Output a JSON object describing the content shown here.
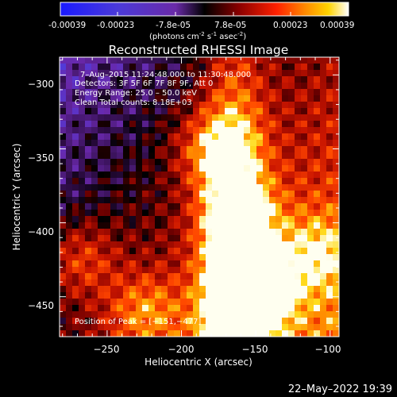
{
  "colorbar": {
    "ticks": [
      "-0.00039",
      "-0.00023",
      "-7.8e-05",
      "7.8e-05",
      "0.00023",
      "0.00039"
    ],
    "units_label": "(photons cm",
    "units_sup1": "-2",
    "units_mid": " s",
    "units_sup2": "-1",
    "units_tail": " asec",
    "units_sup3": "-2",
    "units_close": ")"
  },
  "chart_data": {
    "type": "heatmap",
    "title": "Reconstructed RHESSI Image",
    "xlabel": "Heliocentric X (arcsec)",
    "ylabel": "Heliocentric Y (arcsec)",
    "xlim": [
      -282,
      -94
    ],
    "ylim": [
      -477,
      -288
    ],
    "x_ticks": [
      -250,
      -200,
      -150,
      -100
    ],
    "y_ticks": [
      -300,
      -350,
      -400,
      -450
    ],
    "x_tick_labels": [
      "−250",
      "−200",
      "−150",
      "−100"
    ],
    "y_tick_labels": [
      "−300",
      "−350",
      "−400",
      "−450"
    ],
    "colorbar_range": [
      -0.00039,
      0.00039
    ],
    "colormap": "red-temperature (blue-violet negative, black near zero, red-yellow-white positive)",
    "peak": [
      -151,
      -477
    ],
    "bright_sources": [
      {
        "x": -150,
        "y": -445,
        "relative_intensity": 1.0
      },
      {
        "x": -178,
        "y": -350,
        "relative_intensity": 0.55
      },
      {
        "x": -160,
        "y": -395,
        "relative_intensity": 0.5
      },
      {
        "x": -225,
        "y": -460,
        "relative_intensity": 0.5
      },
      {
        "x": -268,
        "y": -425,
        "relative_intensity": 0.45
      },
      {
        "x": -110,
        "y": -420,
        "relative_intensity": 0.45
      }
    ],
    "annotations": {
      "time_range": "7–Aug–2015 11:24:48.000 to 11:30:48.000",
      "detectors": "Detectors: 3F 5F 6F 7F 8F 9F, Att 0",
      "energy": "Energy Range: 25.0 – 50.0 keV",
      "method": "Clean     Total counts: 8.18E+03",
      "peak_text": "Position of Peak = [−151,−477]"
    }
  },
  "footer": {
    "datestamp": "22–May–2022 19:39"
  }
}
